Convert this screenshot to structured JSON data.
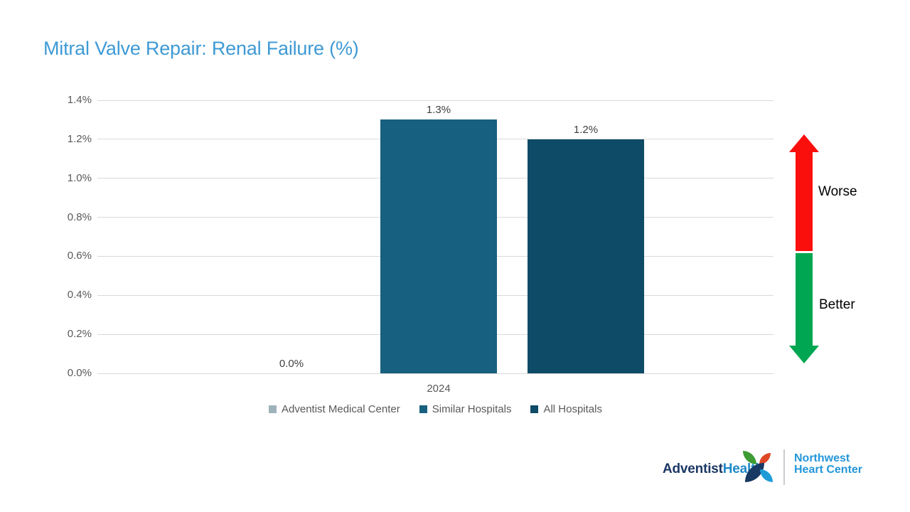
{
  "title": {
    "text": "Mitral Valve Repair: Renal Failure (%)",
    "color": "#3E9AD5"
  },
  "chart_data": {
    "type": "bar",
    "title": "Mitral Valve Repair: Renal Failure (%)",
    "categories": [
      "2024"
    ],
    "series": [
      {
        "name": "Adventist Medical Center",
        "color": "#9FB2BC",
        "values": [
          0.0
        ],
        "labels": [
          "0.0%"
        ]
      },
      {
        "name": "Similar Hospitals",
        "color": "#17607F",
        "values": [
          1.3
        ],
        "labels": [
          "1.3%"
        ]
      },
      {
        "name": "All Hospitals",
        "color": "#0E4B66",
        "values": [
          1.2
        ],
        "labels": [
          "1.2%"
        ]
      }
    ],
    "xlabel": "",
    "ylabel": "",
    "ylim": [
      0,
      1.4
    ],
    "yticks": [
      {
        "value": 1.4,
        "label": "1.4%"
      },
      {
        "value": 1.2,
        "label": "1.2%"
      },
      {
        "value": 1.0,
        "label": "1.0%"
      },
      {
        "value": 0.8,
        "label": "0.8%"
      },
      {
        "value": 0.6,
        "label": "0.6%"
      },
      {
        "value": 0.4,
        "label": "0.4%"
      },
      {
        "value": 0.2,
        "label": "0.2%"
      },
      {
        "value": 0.0,
        "label": "0.0%"
      }
    ],
    "grid": true,
    "gridline_color": "#D9D9D9",
    "axis_text_color": "#595959",
    "data_label_color": "#404040",
    "legend_position": "bottom"
  },
  "benchmark_arrows": {
    "worse_label": "Worse",
    "better_label": "Better",
    "worse_color": "#FA0F0C",
    "better_color": "#00A651",
    "label_color": "#000000"
  },
  "footer_logo": {
    "brand_word1": "Adventist",
    "brand_word2": "Health",
    "brand_word1_color": "#1B3764",
    "brand_word2_color": "#1E88C9",
    "division_line1": "Northwest",
    "division_line2": "Heart Center",
    "division_color": "#2496D8",
    "divider_color": "#C9CDD2",
    "mark_colors": {
      "green": "#3F9C35",
      "red": "#DE4726",
      "navy": "#173963",
      "blue": "#1E9CD7"
    }
  }
}
